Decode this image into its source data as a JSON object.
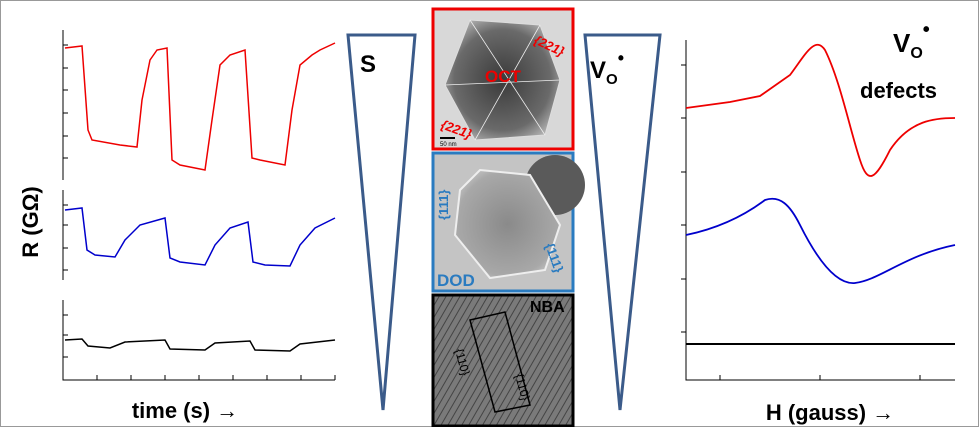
{
  "left_panel": {
    "y_label": "R (GΩ)",
    "x_label": "time (s) →"
  },
  "triangle_s": {
    "label": "S"
  },
  "images": [
    {
      "label": "OCT",
      "facets": [
        "{221}",
        "{221}"
      ],
      "scale_bar": "50 nm"
    },
    {
      "label": "DOD",
      "facets": [
        "{111}",
        "{111}"
      ]
    },
    {
      "label": "NBA",
      "facets": [
        "{110}",
        "{110}"
      ]
    }
  ],
  "triangle_v": {
    "symbol": "V",
    "subscript": "O",
    "superscript": "•"
  },
  "right_panel": {
    "annotation": {
      "symbol": "V",
      "subscript": "O",
      "superscript": "•",
      "text": "defects"
    },
    "x_label": "H (gauss) →"
  }
}
